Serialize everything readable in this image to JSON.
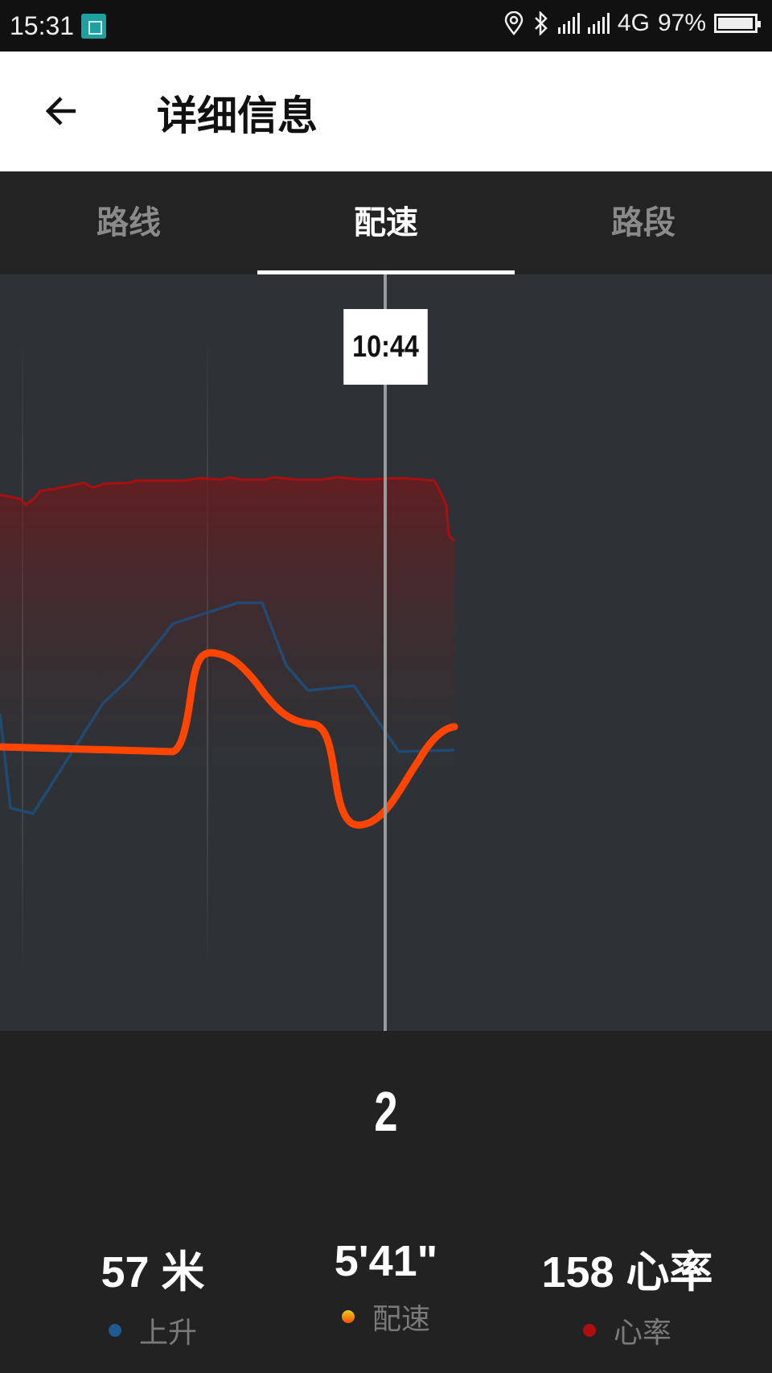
{
  "status_bar": {
    "time": "15:31",
    "network": "4G",
    "battery": "97%",
    "battery_level": 0.97,
    "icons": [
      "screenshot-icon",
      "location-icon",
      "bluetooth-icon",
      "signal-icon",
      "signal-4g-icon",
      "battery-icon"
    ]
  },
  "header": {
    "title": "详细信息",
    "back_icon": "arrow-left-icon"
  },
  "tabs": [
    {
      "label": "路线",
      "active": false
    },
    {
      "label": "配速",
      "active": true
    },
    {
      "label": "路段",
      "active": false
    }
  ],
  "chart": {
    "tooltip": "10:44",
    "colors": {
      "elevation": "#1e4f7e",
      "pace_start": "#f5a623",
      "pace_end": "#ff4500",
      "heart_rate": "#a80f12"
    }
  },
  "lap": {
    "number": "2"
  },
  "stats": [
    {
      "value": "57 米",
      "label": "上升",
      "color": "#1e5a8f"
    },
    {
      "value": "5'41\"",
      "label": "配速",
      "color": "#f57c00"
    },
    {
      "value": "158 心率",
      "label": "心率",
      "color": "#b00d10"
    }
  ]
}
